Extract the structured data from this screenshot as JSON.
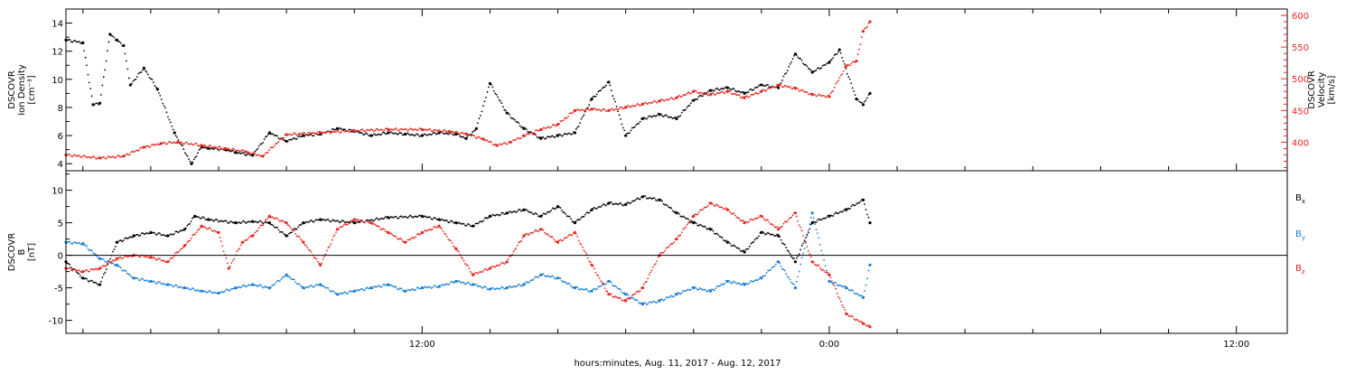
{
  "colors": {
    "black": "#000000",
    "red": "#e8261f",
    "blue": "#1a7fd4"
  },
  "xaxis": {
    "label": "hours:minutes, Aug. 11, 2017 - Aug. 12, 2017",
    "range_hours": [
      1.5,
      37.5
    ],
    "tick_labels": [
      {
        "hour": 12,
        "label": "12:00"
      },
      {
        "hour": 24,
        "label": "0:00"
      },
      {
        "hour": 36,
        "label": "12:00"
      }
    ]
  },
  "chart_data": [
    {
      "type": "scatter",
      "panel": "top",
      "left_axis": {
        "label_lines": [
          "DSCOVR",
          "Ion Density",
          "[cm⁻³]"
        ],
        "ylim": [
          3.5,
          15
        ],
        "ticks": [
          4,
          6,
          8,
          10,
          12,
          14
        ]
      },
      "right_axis": {
        "label_lines": [
          "DSCOVR",
          "Velocity",
          "[km/s]"
        ],
        "ylim": [
          355,
          610
        ],
        "ticks": [
          400,
          450,
          500,
          550,
          600
        ]
      },
      "series": [
        {
          "color": "black",
          "axis": "left",
          "x": [
            1.5,
            2.0,
            2.3,
            2.5,
            2.8,
            3.0,
            3.2,
            3.4,
            3.8,
            4.2,
            4.7,
            5.2,
            5.5,
            5.7,
            6.2,
            6.5,
            7.0,
            7.5,
            8.0,
            8.5,
            9.0,
            9.5,
            10.0,
            10.5,
            11.0,
            11.5,
            12.0,
            12.5,
            13.0,
            13.3,
            13.6,
            14.0,
            14.5,
            15.0,
            15.5,
            16.0,
            16.5,
            17.0,
            17.5,
            18.0,
            18.5,
            19.0,
            19.5,
            20.0,
            20.5,
            21.0,
            21.5,
            22.0,
            22.5,
            23.0,
            23.5,
            24.0,
            24.3,
            24.8,
            25.0,
            25.2
          ],
          "y": [
            12.8,
            12.6,
            8.2,
            8.3,
            13.2,
            12.8,
            12.4,
            9.6,
            10.8,
            9.3,
            6.2,
            4.0,
            5.2,
            5.1,
            5.0,
            4.8,
            4.6,
            6.2,
            5.6,
            6.0,
            6.1,
            6.5,
            6.3,
            6.0,
            6.2,
            6.1,
            6.0,
            6.2,
            6.1,
            5.8,
            6.5,
            9.7,
            7.6,
            6.5,
            5.8,
            6.0,
            6.2,
            8.6,
            9.8,
            6.0,
            7.2,
            7.5,
            7.2,
            8.5,
            9.2,
            9.4,
            9.0,
            9.6,
            9.4,
            11.8,
            10.5,
            11.2,
            12.1,
            8.6,
            8.2,
            9.0
          ]
        },
        {
          "color": "red",
          "axis": "right",
          "x": [
            1.5,
            2.5,
            3.2,
            3.8,
            4.3,
            4.8,
            5.5,
            6.2,
            6.8,
            7.3,
            8.0,
            9.0,
            10.0,
            11.0,
            12.0,
            12.8,
            13.3,
            13.8,
            14.2,
            14.6,
            15.0,
            15.5,
            16.0,
            16.5,
            17.0,
            17.5,
            18.0,
            18.5,
            19.0,
            19.5,
            20.0,
            20.5,
            21.0,
            21.5,
            22.0,
            22.5,
            23.0,
            23.5,
            24.0,
            24.5,
            24.8,
            25.0,
            25.2
          ],
          "y": [
            380,
            375,
            378,
            392,
            398,
            400,
            395,
            390,
            385,
            378,
            412,
            415,
            418,
            420,
            420,
            417,
            413,
            405,
            395,
            400,
            410,
            420,
            428,
            450,
            452,
            450,
            455,
            460,
            465,
            470,
            480,
            475,
            480,
            470,
            480,
            490,
            485,
            475,
            472,
            520,
            528,
            575,
            590
          ]
        }
      ]
    },
    {
      "type": "scatter",
      "panel": "bottom",
      "left_axis": {
        "label_lines": [
          "DSCOVR",
          "B",
          "[nT]"
        ],
        "ylim": [
          -12,
          13
        ],
        "ticks": [
          -10,
          -5,
          0,
          5,
          10
        ]
      },
      "zero_line": true,
      "legend": [
        {
          "text": "Bx",
          "color": "black"
        },
        {
          "text": "By",
          "color": "blue"
        },
        {
          "text": "Bz",
          "color": "red"
        }
      ],
      "series": [
        {
          "color": "black",
          "x": [
            1.5,
            2.0,
            2.5,
            3.0,
            3.5,
            4.0,
            4.5,
            5.0,
            5.3,
            5.7,
            6.5,
            7.0,
            7.5,
            8.0,
            8.5,
            9.0,
            10.0,
            11.0,
            12.0,
            12.5,
            13.0,
            13.5,
            14.0,
            14.5,
            15.0,
            15.5,
            16.0,
            16.5,
            17.0,
            17.5,
            18.0,
            18.5,
            19.0,
            19.5,
            20.0,
            20.5,
            21.0,
            21.5,
            22.0,
            22.5,
            23.0,
            23.5,
            24.0,
            24.5,
            25.0,
            25.2
          ],
          "y": [
            -1.0,
            -3.5,
            -4.5,
            2.0,
            3.0,
            3.5,
            3.0,
            4.0,
            6.0,
            5.5,
            5.0,
            5.2,
            5.0,
            3.0,
            5.0,
            5.5,
            5.0,
            5.8,
            6.0,
            5.5,
            5.0,
            4.5,
            6.0,
            6.5,
            7.0,
            6.0,
            7.5,
            5.0,
            7.0,
            8.0,
            7.8,
            9.0,
            8.5,
            6.5,
            5.0,
            4.0,
            2.0,
            0.5,
            3.5,
            3.0,
            -1.0,
            5.0,
            6.0,
            7.0,
            8.5,
            5.0
          ]
        },
        {
          "color": "blue",
          "x": [
            1.5,
            2.0,
            2.5,
            3.0,
            3.5,
            4.0,
            4.5,
            5.0,
            5.5,
            6.0,
            6.5,
            7.0,
            7.5,
            8.0,
            8.5,
            9.0,
            9.5,
            10.0,
            10.5,
            11.0,
            11.5,
            12.0,
            12.5,
            13.0,
            13.5,
            14.0,
            14.5,
            15.0,
            15.5,
            16.0,
            16.5,
            17.0,
            17.5,
            18.0,
            18.5,
            19.0,
            19.5,
            20.0,
            20.5,
            21.0,
            21.5,
            22.0,
            22.5,
            23.0,
            23.5,
            24.0,
            24.5,
            25.0,
            25.2
          ],
          "y": [
            2.0,
            1.8,
            -0.5,
            -1.5,
            -3.5,
            -4.0,
            -4.5,
            -5.0,
            -5.5,
            -5.8,
            -5.0,
            -4.5,
            -5.0,
            -3.0,
            -5.0,
            -4.5,
            -6.0,
            -5.5,
            -5.0,
            -4.5,
            -5.5,
            -5.0,
            -4.8,
            -4.0,
            -4.5,
            -5.2,
            -5.0,
            -4.5,
            -3.0,
            -3.5,
            -5.0,
            -5.5,
            -4.0,
            -6.0,
            -7.5,
            -7.0,
            -6.0,
            -5.0,
            -5.5,
            -4.0,
            -4.5,
            -3.5,
            -1.0,
            -5.0,
            6.5,
            -4.0,
            -5.0,
            -6.5,
            -1.5
          ]
        },
        {
          "color": "red",
          "x": [
            1.5,
            2.0,
            2.5,
            3.0,
            3.5,
            4.0,
            4.5,
            5.0,
            5.5,
            6.0,
            6.3,
            6.7,
            7.0,
            7.5,
            8.0,
            8.5,
            9.0,
            9.5,
            10.0,
            10.5,
            11.0,
            11.5,
            12.0,
            12.5,
            13.0,
            13.5,
            14.0,
            14.5,
            15.0,
            15.5,
            16.0,
            16.5,
            17.0,
            17.5,
            18.0,
            18.5,
            19.0,
            19.5,
            20.0,
            20.5,
            21.0,
            21.5,
            22.0,
            22.5,
            23.0,
            23.5,
            24.0,
            24.5,
            25.0,
            25.2
          ],
          "y": [
            -2.0,
            -2.5,
            -2.0,
            -0.5,
            0.0,
            -0.3,
            -1.0,
            1.5,
            4.5,
            3.5,
            -2.0,
            2.0,
            3.0,
            6.0,
            5.0,
            2.0,
            -1.5,
            4.0,
            5.5,
            5.0,
            3.5,
            2.0,
            3.5,
            4.5,
            1.0,
            -3.0,
            -2.0,
            -1.0,
            3.0,
            4.0,
            2.0,
            3.5,
            -1.5,
            -6.0,
            -7.0,
            -5.0,
            0.0,
            2.5,
            6.0,
            8.0,
            7.0,
            5.0,
            6.0,
            4.0,
            6.5,
            -1.0,
            -3.0,
            -9.0,
            -10.5,
            -11.0
          ]
        }
      ]
    }
  ]
}
